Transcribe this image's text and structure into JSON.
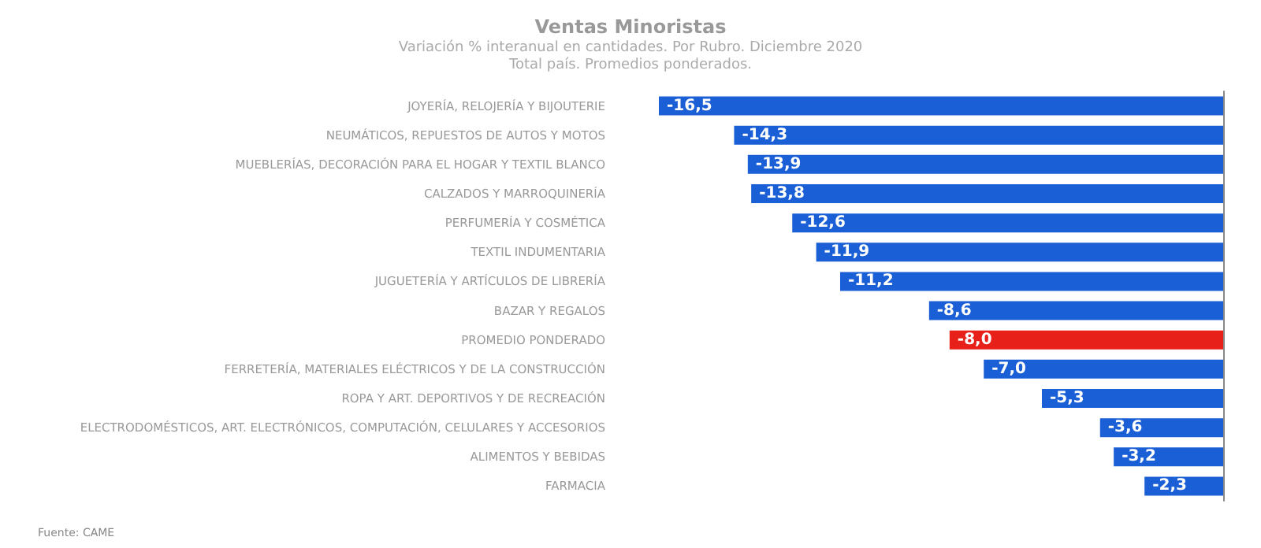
{
  "chart_data": {
    "type": "bar",
    "orientation": "horizontal",
    "title": "Ventas Minoristas",
    "subtitle": "Variación % interanual en cantidades. Por Rubro. Diciembre 2020\nTotal país. Promedios ponderados.",
    "categories": [
      "JOYERÍA, RELOJERÍA Y BIJOUTERIE",
      "NEUMÁTICOS, REPUESTOS DE AUTOS Y MOTOS",
      "MUEBLERÍAS, DECORACIÓN PARA EL HOGAR Y TEXTIL BLANCO",
      "CALZADOS Y MARROQUINERÍA",
      "PERFUMERÍA Y COSMÉTICA",
      "TEXTIL INDUMENTARIA",
      "JUGUETERÍA Y ARTÍCULOS DE LIBRERÍA",
      "BAZAR Y REGALOS",
      "PROMEDIO PONDERADO",
      "FERRETERÍA, MATERIALES ELÉCTRICOS Y DE LA CONSTRUCCIÓN",
      "ROPA Y ART. DEPORTIVOS Y DE RECREACIÓN",
      "ELECTRODOMÉSTICOS, ART. ELECTRÓNICOS, COMPUTACIÓN, CELULARES Y ACCESORIOS",
      "ALIMENTOS Y BEBIDAS",
      "FARMACIA"
    ],
    "values": [
      -16.5,
      -14.3,
      -13.9,
      -13.8,
      -12.6,
      -11.9,
      -11.2,
      -8.6,
      -8.0,
      -7.0,
      -5.3,
      -3.6,
      -3.2,
      -2.3
    ],
    "value_labels": [
      "-16,5",
      "-14,3",
      "-13,9",
      "-13,8",
      "-12,6",
      "-11,9",
      "-11,2",
      "-8,6",
      "-8,0",
      "-7,0",
      "-5,3",
      "-3,6",
      "-3,2",
      "-2,3"
    ],
    "colors": [
      "#1a5fd6",
      "#1a5fd6",
      "#1a5fd6",
      "#1a5fd6",
      "#1a5fd6",
      "#1a5fd6",
      "#1a5fd6",
      "#1a5fd6",
      "#e8201a",
      "#1a5fd6",
      "#1a5fd6",
      "#1a5fd6",
      "#1a5fd6",
      "#1a5fd6"
    ],
    "annotations": [
      "Fuente: CAME"
    ]
  }
}
